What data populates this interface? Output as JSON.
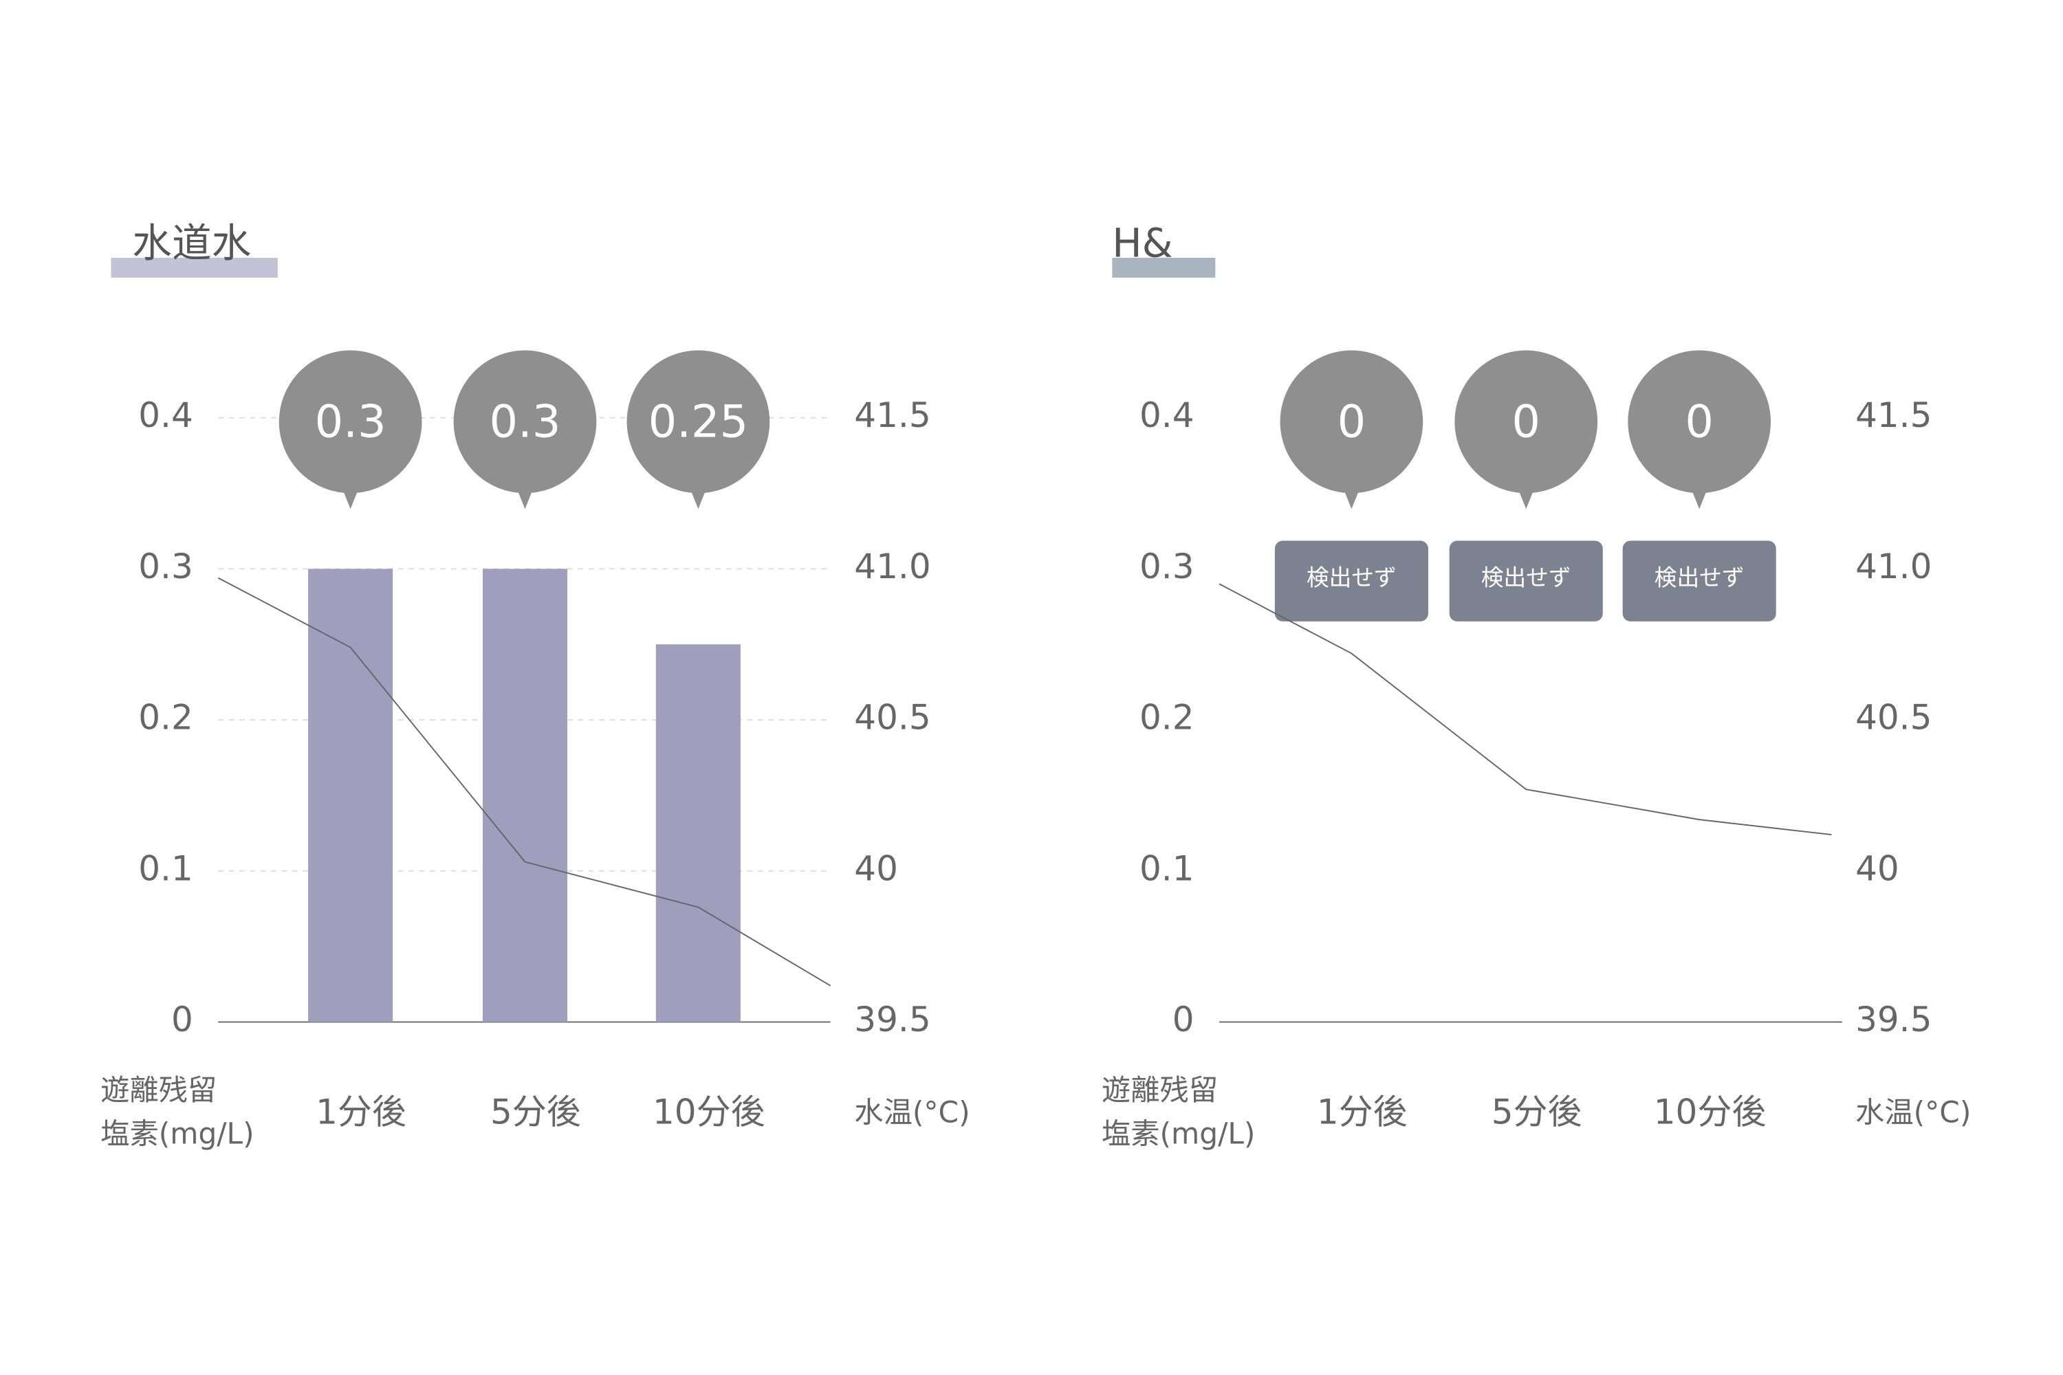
{
  "chart_data": [
    {
      "type": "bar",
      "title": "水道水",
      "title_color": "#c4c2d6",
      "categories": [
        null,
        "1分後",
        "5分後",
        "10分後",
        null
      ],
      "values": [
        null,
        0.3,
        0.3,
        0.25,
        null
      ],
      "color": "#a09dbd",
      "ylabel": [
        "遊離残留",
        "塩素(mg/L)"
      ],
      "y2label": "水温(°C)",
      "ylim": [
        0,
        0.4
      ],
      "yticks": [
        0,
        0.1,
        0.2,
        0.3,
        0.4
      ],
      "y2lim": [
        39.5,
        41.5
      ],
      "y2ticks": [
        39.5,
        40,
        40.5,
        {
          "value": 41,
          "label": "41.0"
        },
        41.5
      ],
      "grid": true,
      "series": [
        {
          "type": "line",
          "axis": "y2",
          "color": "#666666",
          "values": [
            40.97,
            40.74,
            40.03,
            39.88,
            39.62
          ]
        }
      ]
    },
    {
      "type": "bar",
      "title": "H&",
      "title_color": "#a8b5be",
      "categories": [
        null,
        "1分後",
        "5分後",
        "10分後",
        null
      ],
      "values": [
        null,
        0,
        0,
        0,
        null
      ],
      "color": "#a09dbd",
      "annotations": [
        null,
        "検出せず",
        "検出せず",
        "検出せず",
        null
      ],
      "ylabel": [
        "遊離残留",
        "塩素(mg/L)"
      ],
      "y2label": "水温(°C)",
      "ylim": [
        0,
        0.4
      ],
      "yticks": [
        0,
        0.1,
        0.2,
        0.3,
        0.4
      ],
      "y2lim": [
        39.5,
        41.5
      ],
      "y2ticks": [
        39.5,
        40,
        40.5,
        {
          "value": 41,
          "label": "41.0"
        },
        41.5
      ],
      "grid": false,
      "series": [
        {
          "type": "line",
          "axis": "y2",
          "color": "#666666",
          "values": [
            40.95,
            40.72,
            40.27,
            40.17,
            40.12
          ]
        }
      ]
    }
  ]
}
